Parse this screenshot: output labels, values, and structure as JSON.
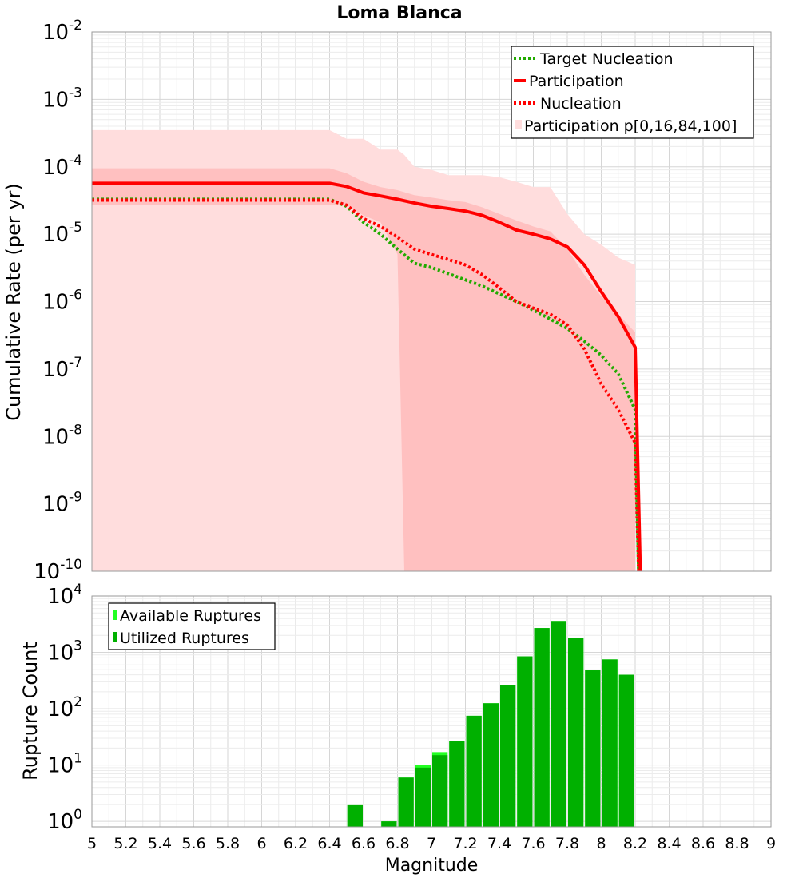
{
  "chart_data": [
    {
      "type": "line",
      "title": "Loma Blanca",
      "ylabel": "Cumulative Rate (per yr)",
      "xlabel": "",
      "xlim": [
        5,
        9
      ],
      "ylim": [
        1e-10,
        0.01
      ],
      "yscale": "log",
      "grid": true,
      "legend_position": "top-right",
      "y_tick_exponents": [
        "-2",
        "-3",
        "-4",
        "-5",
        "-6",
        "-7",
        "-8",
        "-9",
        "-10"
      ],
      "y_tick_base": "10",
      "legend": [
        "Target Nucleation",
        "Participation",
        "Nucleation",
        "Participation p[0,16,84,100]"
      ],
      "series": [
        {
          "name": "Target Nucleation",
          "color": "#22aa00",
          "style": "dotted",
          "x": [
            5.0,
            5.5,
            6.0,
            6.4,
            6.5,
            6.6,
            6.7,
            6.8,
            6.9,
            7.0,
            7.1,
            7.2,
            7.3,
            7.4,
            7.5,
            7.6,
            7.7,
            7.8,
            7.9,
            8.0,
            8.1,
            8.2,
            8.22
          ],
          "y": [
            3.3e-05,
            3.3e-05,
            3.3e-05,
            3.3e-05,
            2.6e-05,
            1.5e-05,
            1e-05,
            6e-06,
            3.7e-06,
            3.2e-06,
            2.6e-06,
            2.1e-06,
            1.7e-06,
            1.3e-06,
            1e-06,
            7.5e-07,
            5.5e-07,
            4e-07,
            2.6e-07,
            1.6e-07,
            8.5e-08,
            2.5e-08,
            1e-10
          ]
        },
        {
          "name": "Participation",
          "color": "#ff0000",
          "style": "solid",
          "x": [
            5.0,
            5.5,
            6.0,
            6.4,
            6.5,
            6.6,
            6.7,
            6.8,
            6.9,
            7.0,
            7.1,
            7.2,
            7.3,
            7.4,
            7.5,
            7.6,
            7.7,
            7.8,
            7.9,
            8.0,
            8.1,
            8.2,
            8.23
          ],
          "y": [
            5.7e-05,
            5.7e-05,
            5.7e-05,
            5.7e-05,
            5.1e-05,
            4.1e-05,
            3.7e-05,
            3.3e-05,
            2.9e-05,
            2.6e-05,
            2.4e-05,
            2.2e-05,
            1.9e-05,
            1.5e-05,
            1.15e-05,
            1e-05,
            8.5e-06,
            6.5e-06,
            3.5e-06,
            1.4e-06,
            6e-07,
            2.1e-07,
            1e-10
          ]
        },
        {
          "name": "Nucleation",
          "color": "#ff0000",
          "style": "dotted",
          "x": [
            5.0,
            5.5,
            6.0,
            6.4,
            6.5,
            6.6,
            6.7,
            6.8,
            6.9,
            7.0,
            7.1,
            7.2,
            7.3,
            7.4,
            7.5,
            7.6,
            7.7,
            7.8,
            7.9,
            8.0,
            8.1,
            8.2,
            8.22
          ],
          "y": [
            3.2e-05,
            3.2e-05,
            3.2e-05,
            3.2e-05,
            2.7e-05,
            1.7e-05,
            1.3e-05,
            9e-06,
            6e-06,
            5e-06,
            4.2e-06,
            3.5e-06,
            2.5e-06,
            1.6e-06,
            1e-06,
            8e-07,
            6.5e-07,
            4.5e-07,
            2e-07,
            6e-08,
            2.5e-08,
            8e-09,
            1e-10
          ]
        }
      ],
      "bands": [
        {
          "name": "Participation p[0,16,84,100]",
          "level": "p0-p100",
          "color": "#ffdddd",
          "x": [
            5.0,
            5.5,
            6.0,
            6.4,
            6.5,
            6.6,
            6.7,
            6.8,
            6.84,
            6.9,
            7.0,
            7.1,
            7.2,
            7.3,
            7.4,
            7.5,
            7.6,
            7.7,
            7.8,
            7.9,
            8.0,
            8.1,
            8.2
          ],
          "lower": [
            1e-10,
            1e-10,
            1e-10,
            1e-10,
            1e-10,
            1e-10,
            1e-10,
            1e-10,
            1e-10,
            1e-10,
            1e-10,
            1e-10,
            1e-10,
            1e-10,
            1e-10,
            1e-10,
            1e-10,
            1e-10,
            1e-10,
            1e-10,
            1e-10,
            1e-10,
            1e-10
          ],
          "upper": [
            0.00035,
            0.00035,
            0.00035,
            0.00035,
            0.00026,
            0.00026,
            0.00018,
            0.00018,
            0.00015,
            0.0001,
            9e-05,
            7.5e-05,
            7.5e-05,
            7.5e-05,
            7e-05,
            6e-05,
            5e-05,
            5e-05,
            2e-05,
            1e-05,
            7e-06,
            4.5e-06,
            3.5e-06
          ]
        },
        {
          "name": "",
          "level": "p16-p84",
          "color": "#ffc0c0",
          "x": [
            5.0,
            5.5,
            6.0,
            6.4,
            6.5,
            6.6,
            6.7,
            6.8,
            6.84,
            6.9,
            7.0,
            7.1,
            7.2,
            7.3,
            7.4,
            7.5,
            7.6,
            7.7,
            7.8,
            7.9,
            8.0,
            8.1,
            8.2
          ],
          "lower": [
            2.7e-05,
            2.7e-05,
            2.7e-05,
            2.7e-05,
            2.7e-05,
            1.9e-05,
            1.5e-05,
            5e-06,
            1e-10,
            1e-10,
            1e-10,
            1e-10,
            1e-10,
            1e-10,
            1e-10,
            1e-10,
            1e-10,
            1e-10,
            1e-10,
            1e-10,
            1e-10,
            1e-10,
            1e-10
          ],
          "upper": [
            9.5e-05,
            9.5e-05,
            9.5e-05,
            9.5e-05,
            8e-05,
            6e-05,
            5e-05,
            4.5e-05,
            4.2e-05,
            3.8e-05,
            3.5e-05,
            3.2e-05,
            3e-05,
            2.5e-05,
            2e-05,
            1.6e-05,
            1.3e-05,
            1.1e-05,
            6e-06,
            2.5e-06,
            1.2e-06,
            6.5e-07,
            3.5e-07
          ]
        }
      ]
    },
    {
      "type": "bar",
      "ylabel": "Rupture Count",
      "xlabel": "Magnitude",
      "xlim": [
        5,
        9
      ],
      "ylim": [
        0.8,
        10000
      ],
      "yscale": "log",
      "grid": true,
      "legend_position": "top-left",
      "x_ticks": [
        "5",
        "5.2",
        "5.4",
        "5.6",
        "5.8",
        "6",
        "6.2",
        "6.4",
        "6.6",
        "6.8",
        "7",
        "7.2",
        "7.4",
        "7.6",
        "7.8",
        "8",
        "8.2",
        "8.4",
        "8.6",
        "8.8",
        "9"
      ],
      "y_tick_exponents": [
        "4",
        "3",
        "2",
        "1",
        "0"
      ],
      "y_tick_base": "10",
      "legend": [
        "Available Ruptures",
        "Utilized Ruptures"
      ],
      "bin_width": 0.1,
      "series": [
        {
          "name": "Available Ruptures",
          "color": "#22ff22",
          "x": [
            6.55,
            6.75,
            6.85,
            6.95,
            7.05,
            7.15,
            7.25,
            7.35,
            7.45,
            7.55,
            7.65,
            7.75,
            7.85,
            7.95,
            8.05,
            8.15
          ],
          "values": [
            2,
            1,
            6,
            10,
            17,
            27,
            75,
            125,
            265,
            850,
            2700,
            3600,
            1800,
            480,
            750,
            400
          ]
        },
        {
          "name": "Utilized Ruptures",
          "color": "#00b000",
          "x": [
            6.55,
            6.75,
            6.85,
            6.95,
            7.05,
            7.15,
            7.25,
            7.35,
            7.45,
            7.55,
            7.65,
            7.75,
            7.85,
            7.95,
            8.05,
            8.15
          ],
          "values": [
            2,
            1,
            6,
            9,
            15,
            27,
            75,
            125,
            265,
            850,
            2700,
            3600,
            1800,
            480,
            750,
            400
          ]
        }
      ]
    }
  ]
}
